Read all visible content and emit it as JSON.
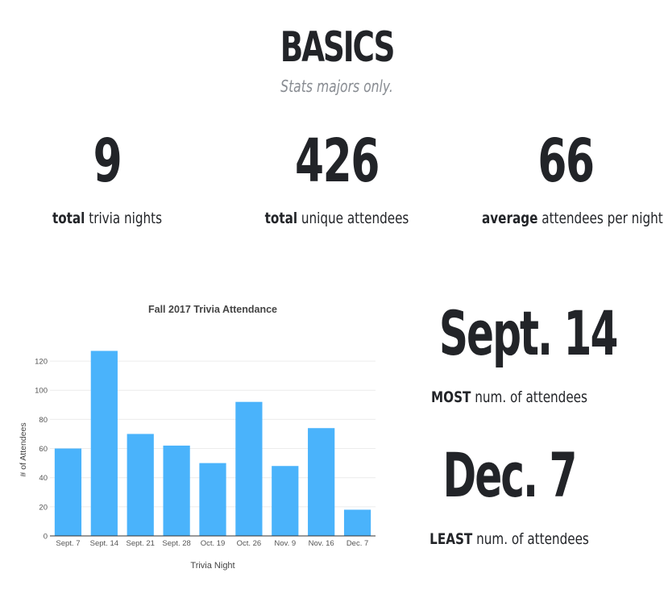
{
  "header": {
    "title": "BASICS",
    "subtitle": "Stats majors only."
  },
  "stats": [
    {
      "value": "9",
      "bold": "total",
      "label": " trivia nights"
    },
    {
      "value": "426",
      "bold": "total",
      "label": " unique attendees"
    },
    {
      "value": "66",
      "bold": "average",
      "label": " attendees per night"
    }
  ],
  "highlights": {
    "most": {
      "date": "Sept. 14",
      "bold": "MOST",
      "label": " num. of attendees"
    },
    "least": {
      "date": "Dec. 7",
      "bold": "LEAST",
      "label": " num. of attendees"
    }
  },
  "chart_data": {
    "type": "bar",
    "title": "Fall 2017 Trivia Attendance",
    "xlabel": "Trivia Night",
    "ylabel": "# of Attendees",
    "categories": [
      "Sept. 7",
      "Sept. 14",
      "Sept. 21",
      "Sept. 28",
      "Oct. 19",
      "Oct. 26",
      "Nov. 9",
      "Nov. 16",
      "Dec. 7"
    ],
    "values": [
      60,
      127,
      70,
      62,
      50,
      92,
      48,
      74,
      18
    ],
    "ylim": [
      0,
      130
    ],
    "yticks": [
      0,
      20,
      40,
      60,
      80,
      100,
      120
    ],
    "grid": true,
    "legend": "none",
    "bar_color": "#4ab3fb"
  }
}
